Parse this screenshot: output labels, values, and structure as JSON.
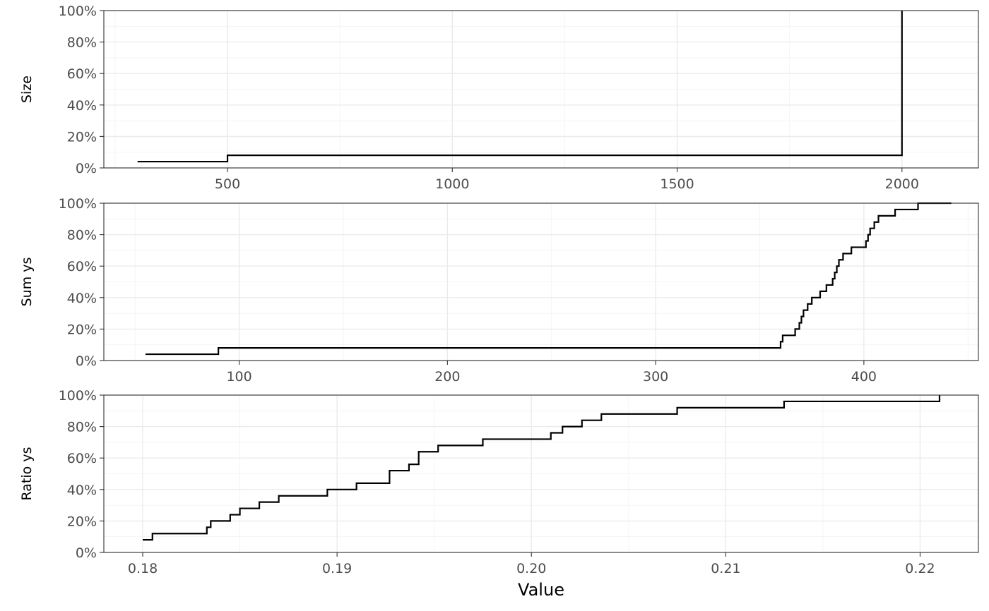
{
  "chart_data": [
    {
      "type": "line",
      "subtype": "ecdf-step",
      "ylabel": "Size",
      "xlim": [
        225,
        2170
      ],
      "ylim": [
        0,
        1
      ],
      "x_ticks": [
        500,
        1000,
        1500,
        2000
      ],
      "x_tick_labels": [
        "500",
        "1000",
        "1500",
        "2000"
      ],
      "y_ticks": [
        0,
        0.2,
        0.4,
        0.6,
        0.8,
        1.0
      ],
      "y_tick_labels": [
        "0%",
        "20%",
        "40%",
        "60%",
        "80%",
        "100%"
      ],
      "grid": true,
      "x": [
        300,
        500,
        2000
      ],
      "y": [
        0.04,
        0.08,
        1.0
      ]
    },
    {
      "type": "line",
      "subtype": "ecdf-step",
      "ylabel": "Sum ys",
      "xlim": [
        35,
        455
      ],
      "ylim": [
        0,
        1
      ],
      "x_ticks": [
        100,
        200,
        300,
        400
      ],
      "x_tick_labels": [
        "100",
        "200",
        "300",
        "400"
      ],
      "y_ticks": [
        0,
        0.2,
        0.4,
        0.6,
        0.8,
        1.0
      ],
      "y_tick_labels": [
        "0%",
        "20%",
        "40%",
        "60%",
        "80%",
        "100%"
      ],
      "grid": true,
      "x": [
        55,
        90,
        360,
        361,
        367,
        369,
        370,
        371,
        373,
        375,
        379,
        382,
        385,
        386,
        387,
        388,
        390,
        394,
        401,
        402,
        403,
        405,
        407,
        415,
        426,
        442
      ],
      "y": [
        0.04,
        0.08,
        0.12,
        0.16,
        0.2,
        0.24,
        0.28,
        0.32,
        0.36,
        0.4,
        0.44,
        0.48,
        0.52,
        0.56,
        0.6,
        0.64,
        0.68,
        0.72,
        0.76,
        0.8,
        0.84,
        0.88,
        0.92,
        0.96,
        1.0,
        1.0
      ]
    },
    {
      "type": "line",
      "subtype": "ecdf-step",
      "ylabel": "Ratio ys",
      "xlabel": "Value",
      "xlim": [
        0.178,
        0.223
      ],
      "ylim": [
        0,
        1
      ],
      "x_ticks": [
        0.18,
        0.19,
        0.2,
        0.21,
        0.22
      ],
      "x_tick_labels": [
        "0.18",
        "0.19",
        "0.20",
        "0.21",
        "0.22"
      ],
      "y_ticks": [
        0,
        0.2,
        0.4,
        0.6,
        0.8,
        1.0
      ],
      "y_tick_labels": [
        "0%",
        "20%",
        "40%",
        "60%",
        "80%",
        "100%"
      ],
      "grid": true,
      "x": [
        0.18,
        0.1805,
        0.1833,
        0.1835,
        0.1845,
        0.185,
        0.186,
        0.187,
        0.1895,
        0.191,
        0.1927,
        0.1937,
        0.1942,
        0.1952,
        0.1975,
        0.201,
        0.2016,
        0.2026,
        0.2036,
        0.2075,
        0.213,
        0.221
      ],
      "y": [
        0.08,
        0.12,
        0.16,
        0.2,
        0.24,
        0.28,
        0.32,
        0.36,
        0.4,
        0.44,
        0.52,
        0.56,
        0.64,
        0.68,
        0.72,
        0.76,
        0.8,
        0.84,
        0.88,
        0.92,
        0.96,
        1.0
      ]
    }
  ]
}
